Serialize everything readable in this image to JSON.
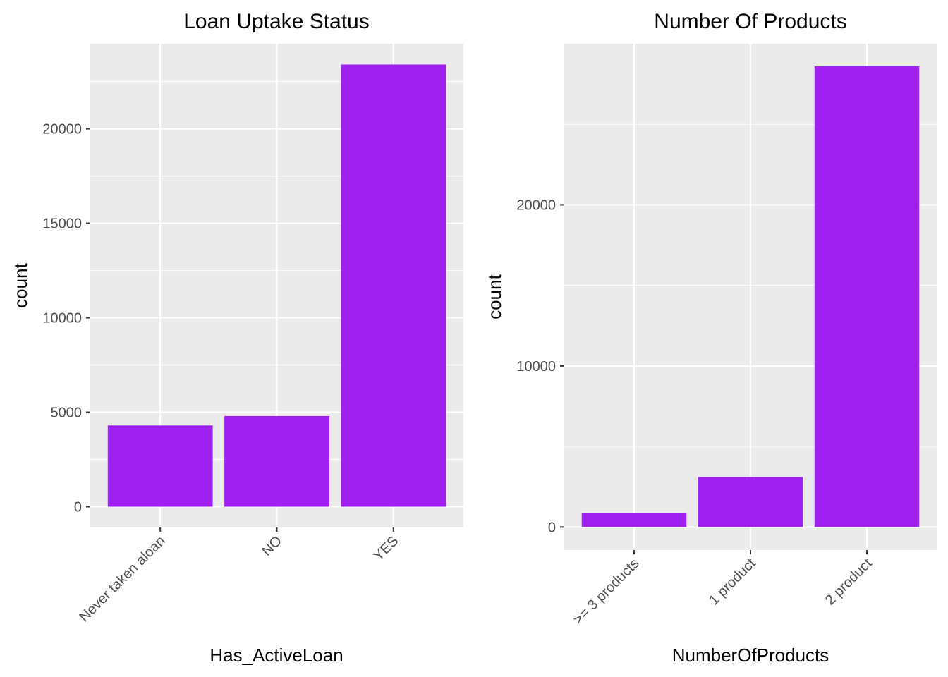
{
  "colors": {
    "bar": "#A020F0",
    "panel": "#EBEBEB",
    "grid": "#FFFFFF"
  },
  "chart_data": [
    {
      "type": "bar",
      "title": "Loan Uptake Status",
      "xlabel": "Has_ActiveLoan",
      "ylabel": "count",
      "categories": [
        "Never taken aloan",
        "NO",
        "YES"
      ],
      "values": [
        4300,
        4800,
        23400
      ],
      "ylim": [
        -1100,
        24500
      ],
      "y_ticks": [
        0,
        5000,
        10000,
        15000,
        20000
      ],
      "y_tick_labels": [
        "0",
        "5000",
        "10000",
        "15000",
        "20000"
      ],
      "grid": true,
      "legend": "none"
    },
    {
      "type": "bar",
      "title": "Number Of Products",
      "xlabel": "NumberOfProducts",
      "ylabel": "count",
      "categories": [
        ">= 3 products",
        "1 product",
        "2 product"
      ],
      "values": [
        850,
        3100,
        28600
      ],
      "ylim": [
        -1430,
        30000
      ],
      "y_ticks": [
        0,
        10000,
        20000
      ],
      "y_tick_labels": [
        "0",
        "10000",
        "20000"
      ],
      "grid": true,
      "legend": "none"
    }
  ]
}
